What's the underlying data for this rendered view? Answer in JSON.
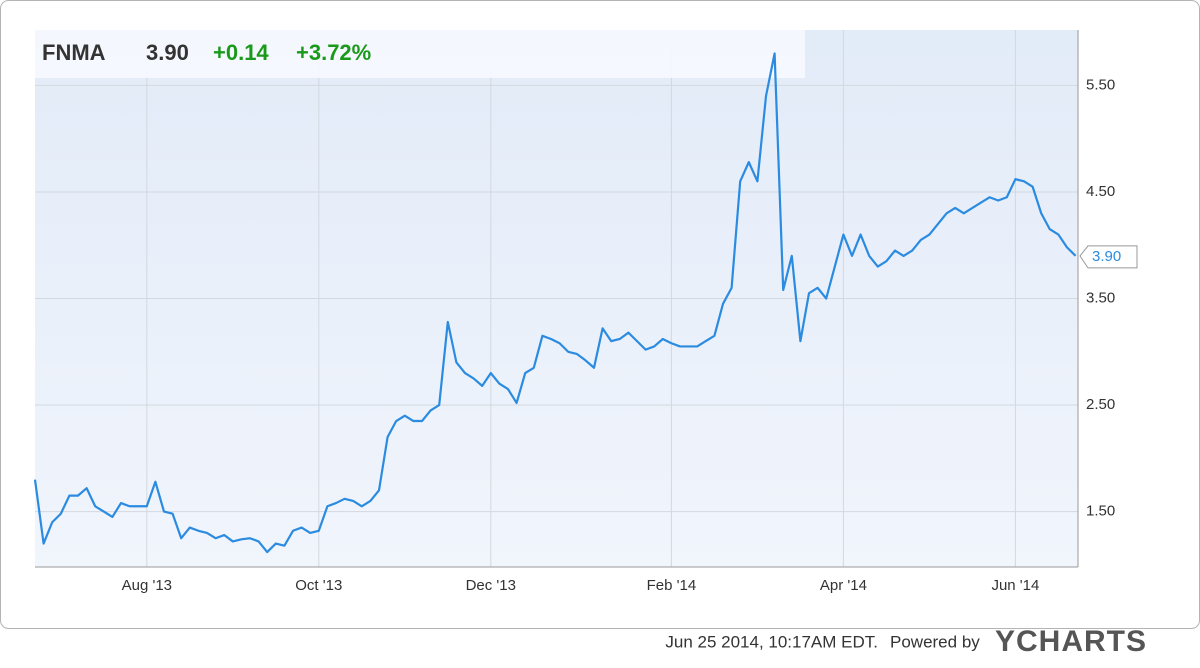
{
  "chart_data": {
    "type": "line",
    "header": {
      "symbol": "FNMA",
      "price": "3.90",
      "change": "+0.14",
      "change_percent": "+3.72%"
    },
    "categories": [
      null,
      null,
      null,
      null,
      null,
      null,
      null,
      null,
      null,
      null,
      null,
      null,
      null,
      "Aug '13",
      null,
      null,
      null,
      null,
      null,
      null,
      null,
      null,
      null,
      null,
      null,
      null,
      null,
      null,
      null,
      null,
      null,
      null,
      null,
      "Oct '13",
      null,
      null,
      null,
      null,
      null,
      null,
      null,
      null,
      null,
      null,
      null,
      null,
      null,
      null,
      null,
      null,
      null,
      null,
      null,
      "Dec '13",
      null,
      null,
      null,
      null,
      null,
      null,
      null,
      null,
      null,
      null,
      null,
      null,
      null,
      null,
      null,
      null,
      null,
      null,
      null,
      null,
      "Feb '14",
      null,
      null,
      null,
      null,
      null,
      null,
      null,
      null,
      null,
      null,
      null,
      null,
      null,
      null,
      null,
      null,
      null,
      null,
      null,
      "Apr '14",
      null,
      null,
      null,
      null,
      null,
      null,
      null,
      null,
      null,
      null,
      null,
      null,
      null,
      null,
      null,
      null,
      null,
      null,
      null,
      "Jun '14",
      null,
      null,
      null,
      null,
      null,
      null,
      null
    ],
    "series": [
      {
        "name": "FNMA",
        "color": "#2b8be0",
        "values": [
          1.8,
          1.2,
          1.4,
          1.48,
          1.65,
          1.65,
          1.72,
          1.55,
          1.5,
          1.45,
          1.58,
          1.55,
          1.55,
          1.55,
          1.78,
          1.5,
          1.48,
          1.25,
          1.35,
          1.32,
          1.3,
          1.25,
          1.28,
          1.22,
          1.24,
          1.25,
          1.22,
          1.12,
          1.2,
          1.18,
          1.32,
          1.35,
          1.3,
          1.32,
          1.55,
          1.58,
          1.62,
          1.6,
          1.55,
          1.6,
          1.7,
          2.2,
          2.35,
          2.4,
          2.35,
          2.35,
          2.45,
          2.5,
          3.28,
          2.9,
          2.8,
          2.75,
          2.68,
          2.8,
          2.7,
          2.65,
          2.52,
          2.8,
          2.85,
          3.15,
          3.12,
          3.08,
          3.0,
          2.98,
          2.92,
          2.85,
          3.22,
          3.1,
          3.12,
          3.18,
          3.1,
          3.02,
          3.05,
          3.12,
          3.08,
          3.05,
          3.05,
          3.05,
          3.1,
          3.15,
          3.45,
          3.6,
          4.6,
          4.78,
          4.6,
          5.4,
          5.8,
          3.58,
          3.9,
          3.1,
          3.55,
          3.6,
          3.5,
          3.8,
          4.1,
          3.9,
          4.1,
          3.9,
          3.8,
          3.85,
          3.95,
          3.9,
          3.95,
          4.05,
          4.1,
          4.2,
          4.3,
          4.35,
          4.3,
          4.35,
          4.4,
          4.45,
          4.42,
          4.45,
          4.62,
          4.6,
          4.55,
          4.3,
          4.15,
          4.1,
          3.98,
          3.9
        ]
      }
    ],
    "end_label": "3.90",
    "ylim": [
      0.98,
      6.02
    ],
    "yticks": [
      {
        "value": 1.5,
        "label": "1.50"
      },
      {
        "value": 2.5,
        "label": "2.50"
      },
      {
        "value": 3.5,
        "label": "3.50"
      },
      {
        "value": 4.5,
        "label": "4.50"
      },
      {
        "value": 5.5,
        "label": "5.50"
      }
    ],
    "grid": true,
    "footer": {
      "timestamp": "Jun 25 2014, 10:17AM EDT.",
      "powered_by": "Powered by",
      "brand": "YCHARTS"
    }
  }
}
